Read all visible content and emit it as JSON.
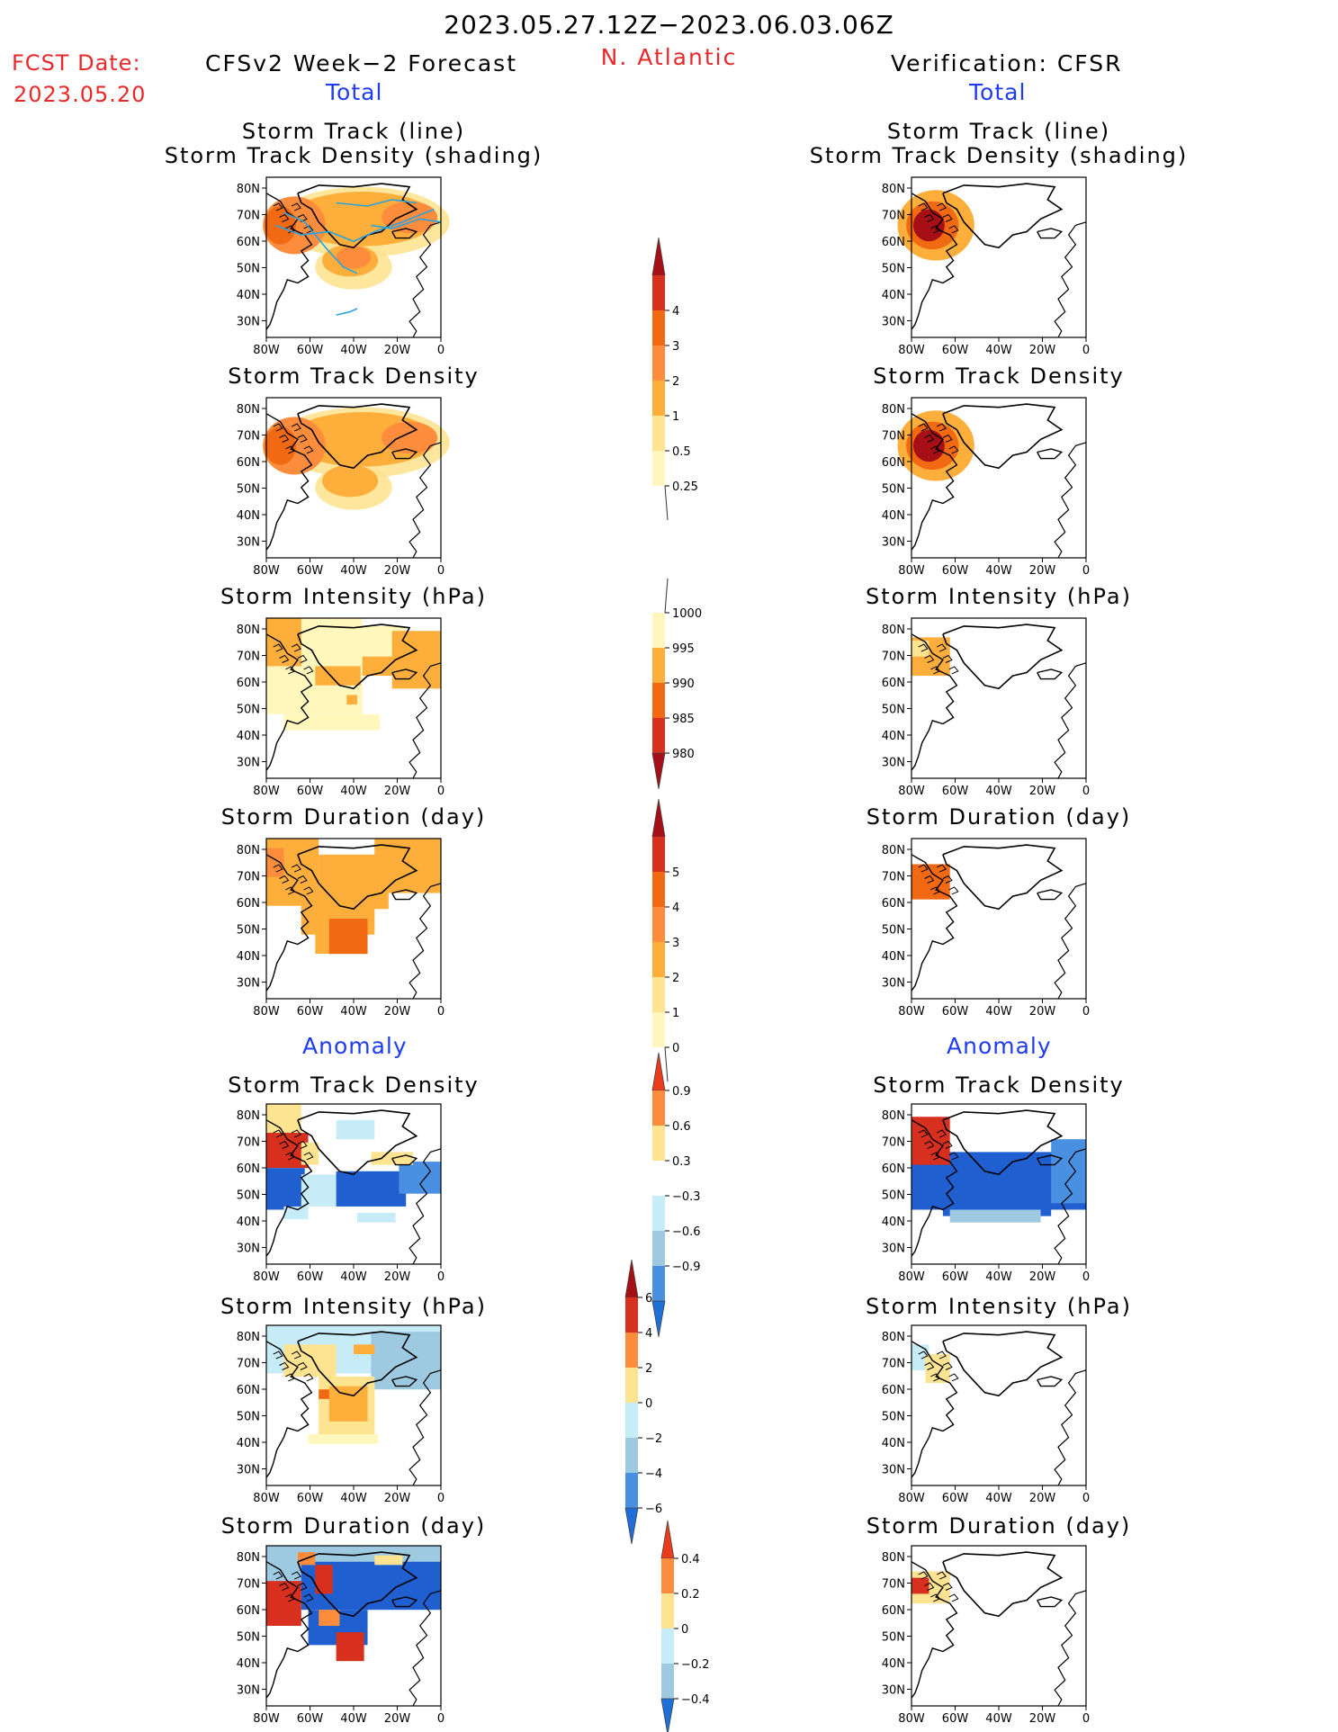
{
  "header": {
    "title": "2023.05.27.12Z−2023.06.03.06Z",
    "fcst_label": "FCST Date:",
    "fcst_date": "2023.05.20",
    "region": "N. Atlantic",
    "left_title": "CFSv2 Week−2 Forecast",
    "right_title": "Verification: CFSR",
    "total_label": "Total",
    "anomaly_label": "Anomaly"
  },
  "axes": {
    "lat_ticks": [
      "80N",
      "70N",
      "60N",
      "50N",
      "40N",
      "30N"
    ],
    "lon_ticks": [
      "80W",
      "60W",
      "40W",
      "20W",
      "0"
    ]
  },
  "panels": {
    "track_line_1": "Storm Track (line)",
    "track_line_2": "Storm Track Density (shading)",
    "density": "Storm Track Density",
    "intensity": "Storm Intensity (hPa)",
    "duration": "Storm Duration (day)"
  },
  "colorbars": {
    "density": [
      "4",
      "3",
      "2",
      "1",
      "0.5",
      "0.25"
    ],
    "intensity": [
      "1000",
      "995",
      "990",
      "985",
      "980"
    ],
    "duration": [
      "5",
      "4",
      "3",
      "2",
      "1",
      "0"
    ],
    "anom_density": [
      "0.9",
      "0.6",
      "0.3",
      "−0.3",
      "−0.6",
      "−0.9"
    ],
    "anom_intensity": [
      "6",
      "4",
      "2",
      "0",
      "−2",
      "−4",
      "−6"
    ],
    "anom_duration": [
      "0.4",
      "0.2",
      "0",
      "−0.2",
      "−0.4"
    ]
  },
  "colors": {
    "red_text": "#e8292b",
    "blue_text": "#1f3cf0",
    "dark_red": "#a50f15",
    "red": "#d7301f",
    "orange_red": "#f16913",
    "orange": "#fd8d3c",
    "light_orange": "#fdae3b",
    "yellow": "#fee391",
    "pale_yellow": "#fff7bc",
    "light_blue": "#c6ecf7",
    "sky_blue": "#9ecae1",
    "blue": "#4a90e2",
    "dark_blue": "#1f5fd0",
    "track_line": "#29a3e0"
  }
}
